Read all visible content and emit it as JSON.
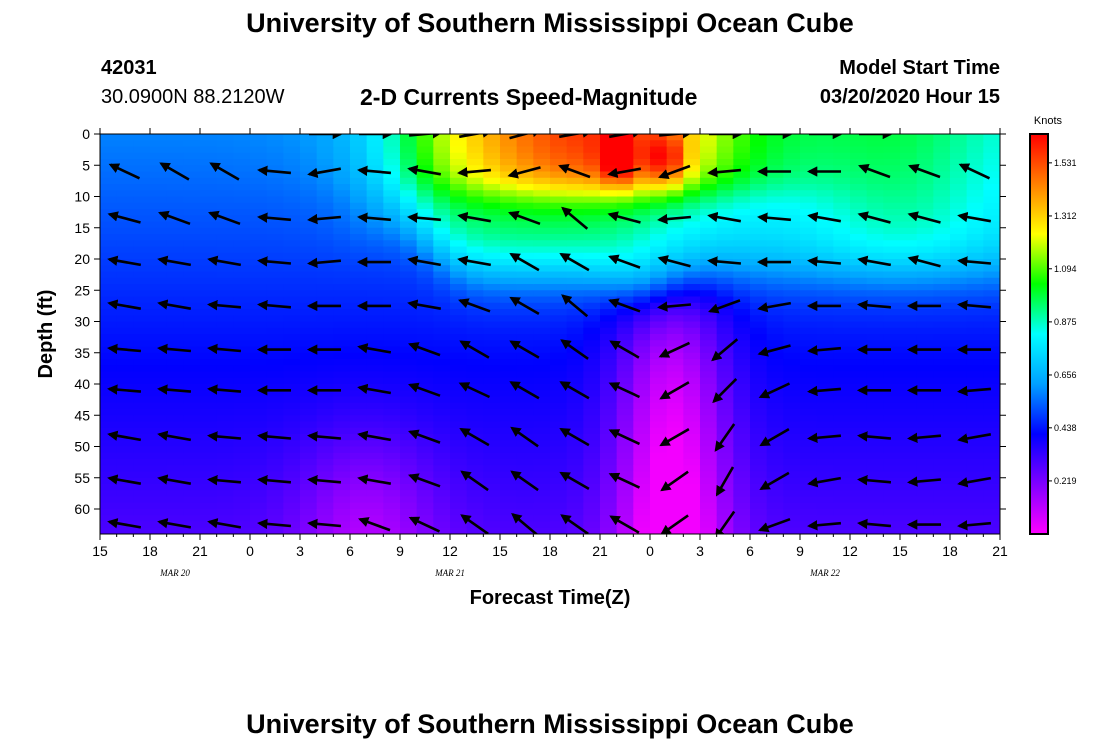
{
  "header": {
    "title_top": "University of Southern Mississippi Ocean Cube",
    "title_bottom": "University of Southern Mississippi Ocean Cube",
    "station_id": "42031",
    "coordinates": "30.0900N 88.2120W",
    "plot_title": "2-D Currents Speed-Magnitude",
    "model_start_label": "Model Start Time",
    "model_start_value": "03/20/2020 Hour 15"
  },
  "chart_data": {
    "type": "heatmap",
    "title": "2-D Currents Speed-Magnitude",
    "xlabel": "Forecast Time(Z)",
    "ylabel": "Depth (ft)",
    "x_ticks_hours": [
      0,
      3,
      6,
      9,
      12,
      15,
      18,
      21,
      24,
      27,
      30,
      33,
      36,
      39,
      42,
      45,
      48,
      51,
      54
    ],
    "x_tick_labels": [
      "15",
      "18",
      "21",
      "0",
      "3",
      "6",
      "9",
      "12",
      "15",
      "18",
      "21",
      "0",
      "3",
      "6",
      "9",
      "12",
      "15",
      "18",
      "21"
    ],
    "x_range_hours": [
      0,
      54
    ],
    "date_labels": [
      {
        "text": "MAR  20",
        "hour": 4.5
      },
      {
        "text": "MAR  21",
        "hour": 21
      },
      {
        "text": "MAR  22",
        "hour": 43.5
      }
    ],
    "y_ticks": [
      0,
      5,
      10,
      15,
      20,
      25,
      30,
      35,
      40,
      45,
      50,
      55,
      60
    ],
    "y_range": [
      0,
      64
    ],
    "colorbar": {
      "label": "Knots",
      "ticks": [
        0.219,
        0.438,
        0.656,
        0.875,
        1.094,
        1.312,
        1.531
      ],
      "range": [
        0,
        1.65
      ],
      "colors": [
        "#ff00ff",
        "#8000ff",
        "#0000ff",
        "#00a0ff",
        "#00ffff",
        "#00ff00",
        "#ffff00",
        "#ff8000",
        "#ff0000"
      ]
    },
    "arrow_columns_hours": [
      1.5,
      4.5,
      7.5,
      10.5,
      13.5,
      16.5,
      19.5,
      22.5,
      25.5,
      28.5,
      31.5,
      34.5,
      37.5,
      40.5,
      43.5,
      46.5,
      49.5,
      52.5
    ],
    "arrow_depths_ft": [
      0,
      6,
      13.5,
      20.5,
      27.5,
      34.5,
      41,
      48.5,
      55.5,
      62.5
    ],
    "arrow_directions_deg": [
      [
        null,
        null,
        null,
        null,
        0,
        0,
        5,
        10,
        15,
        10,
        10,
        5,
        0,
        0,
        0,
        0,
        null,
        null
      ],
      [
        155,
        150,
        150,
        175,
        190,
        175,
        170,
        185,
        195,
        160,
        190,
        200,
        185,
        180,
        180,
        160,
        160,
        155
      ],
      [
        165,
        160,
        160,
        175,
        185,
        175,
        175,
        170,
        160,
        140,
        165,
        185,
        170,
        175,
        170,
        165,
        165,
        170
      ],
      [
        170,
        170,
        170,
        175,
        185,
        180,
        170,
        170,
        150,
        150,
        160,
        165,
        175,
        180,
        175,
        170,
        165,
        175
      ],
      [
        170,
        170,
        175,
        175,
        180,
        180,
        170,
        160,
        150,
        140,
        160,
        185,
        200,
        190,
        180,
        175,
        180,
        175
      ],
      [
        175,
        175,
        175,
        180,
        180,
        170,
        160,
        150,
        150,
        145,
        150,
        205,
        220,
        195,
        185,
        180,
        180,
        180
      ],
      [
        175,
        175,
        175,
        180,
        180,
        170,
        160,
        155,
        150,
        150,
        155,
        210,
        225,
        205,
        185,
        180,
        180,
        185
      ],
      [
        170,
        170,
        175,
        175,
        175,
        170,
        160,
        150,
        145,
        150,
        155,
        210,
        235,
        210,
        185,
        175,
        185,
        190
      ],
      [
        170,
        170,
        175,
        175,
        175,
        170,
        160,
        145,
        145,
        150,
        155,
        215,
        240,
        210,
        190,
        175,
        185,
        190
      ],
      [
        170,
        170,
        170,
        175,
        175,
        160,
        155,
        145,
        140,
        145,
        150,
        215,
        235,
        200,
        185,
        175,
        180,
        185
      ]
    ]
  }
}
